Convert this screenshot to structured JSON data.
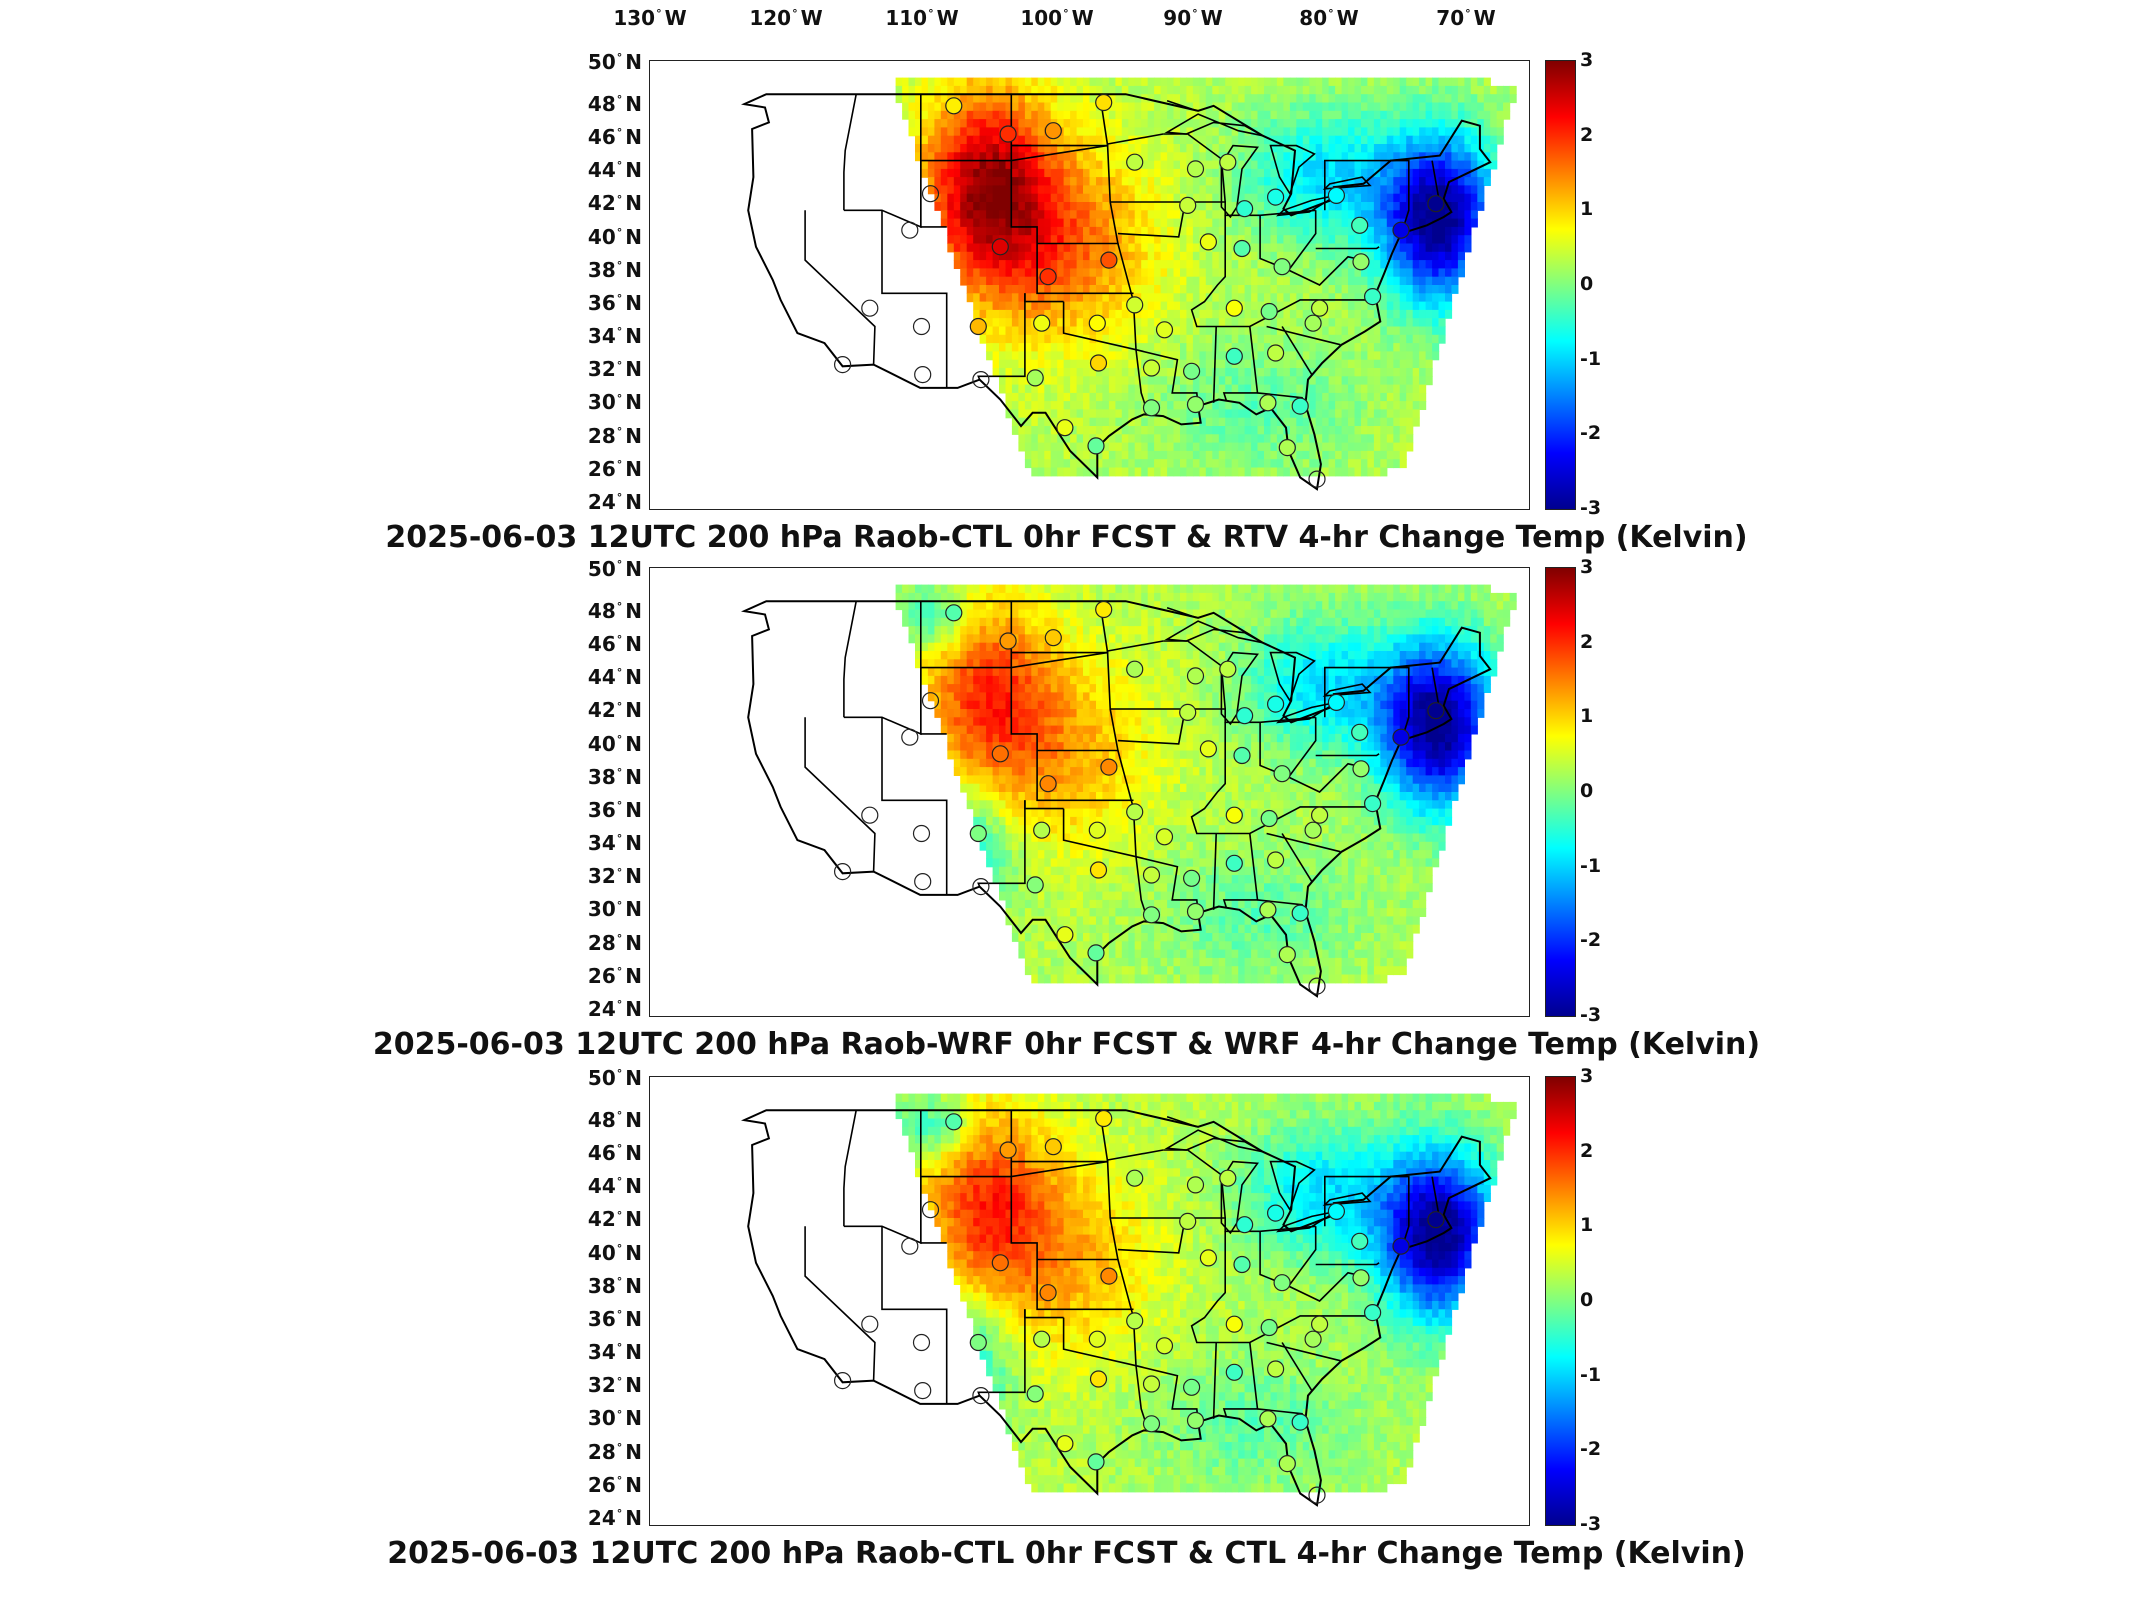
{
  "longitude_labels": [
    {
      "deg": "130",
      "hemi": "W"
    },
    {
      "deg": "120",
      "hemi": "W"
    },
    {
      "deg": "110",
      "hemi": "W"
    },
    {
      "deg": "100",
      "hemi": "W"
    },
    {
      "deg": "90",
      "hemi": "W"
    },
    {
      "deg": "80",
      "hemi": "W"
    },
    {
      "deg": "70",
      "hemi": "W"
    }
  ],
  "latitude_labels": [
    {
      "deg": "50",
      "hemi": "N"
    },
    {
      "deg": "48",
      "hemi": "N"
    },
    {
      "deg": "46",
      "hemi": "N"
    },
    {
      "deg": "44",
      "hemi": "N"
    },
    {
      "deg": "42",
      "hemi": "N"
    },
    {
      "deg": "40",
      "hemi": "N"
    },
    {
      "deg": "38",
      "hemi": "N"
    },
    {
      "deg": "36",
      "hemi": "N"
    },
    {
      "deg": "34",
      "hemi": "N"
    },
    {
      "deg": "32",
      "hemi": "N"
    },
    {
      "deg": "30",
      "hemi": "N"
    },
    {
      "deg": "28",
      "hemi": "N"
    },
    {
      "deg": "26",
      "hemi": "N"
    },
    {
      "deg": "24",
      "hemi": "N"
    }
  ],
  "colorbar": {
    "ticks": [
      "3",
      "2",
      "1",
      "0",
      "-1",
      "-2",
      "-3"
    ],
    "min": -3,
    "max": 3,
    "colors": [
      "#00008f",
      "#0000ff",
      "#0080ff",
      "#00ffff",
      "#80ff80",
      "#ffff00",
      "#ff8000",
      "#ff0000",
      "#800000"
    ]
  },
  "panels": [
    {
      "title": "2025-06-03 12UTC 200 hPa Raob-CTL 0hr FCST & RTV 4-hr Change Temp (Kelvin)"
    },
    {
      "title": "2025-06-03 12UTC 200 hPa Raob-WRF 0hr FCST & WRF 4-hr Change Temp (Kelvin)"
    },
    {
      "title": "2025-06-03 12UTC 200 hPa Raob-CTL 0hr FCST & CTL 4-hr Change Temp (Kelvin)"
    }
  ]
}
